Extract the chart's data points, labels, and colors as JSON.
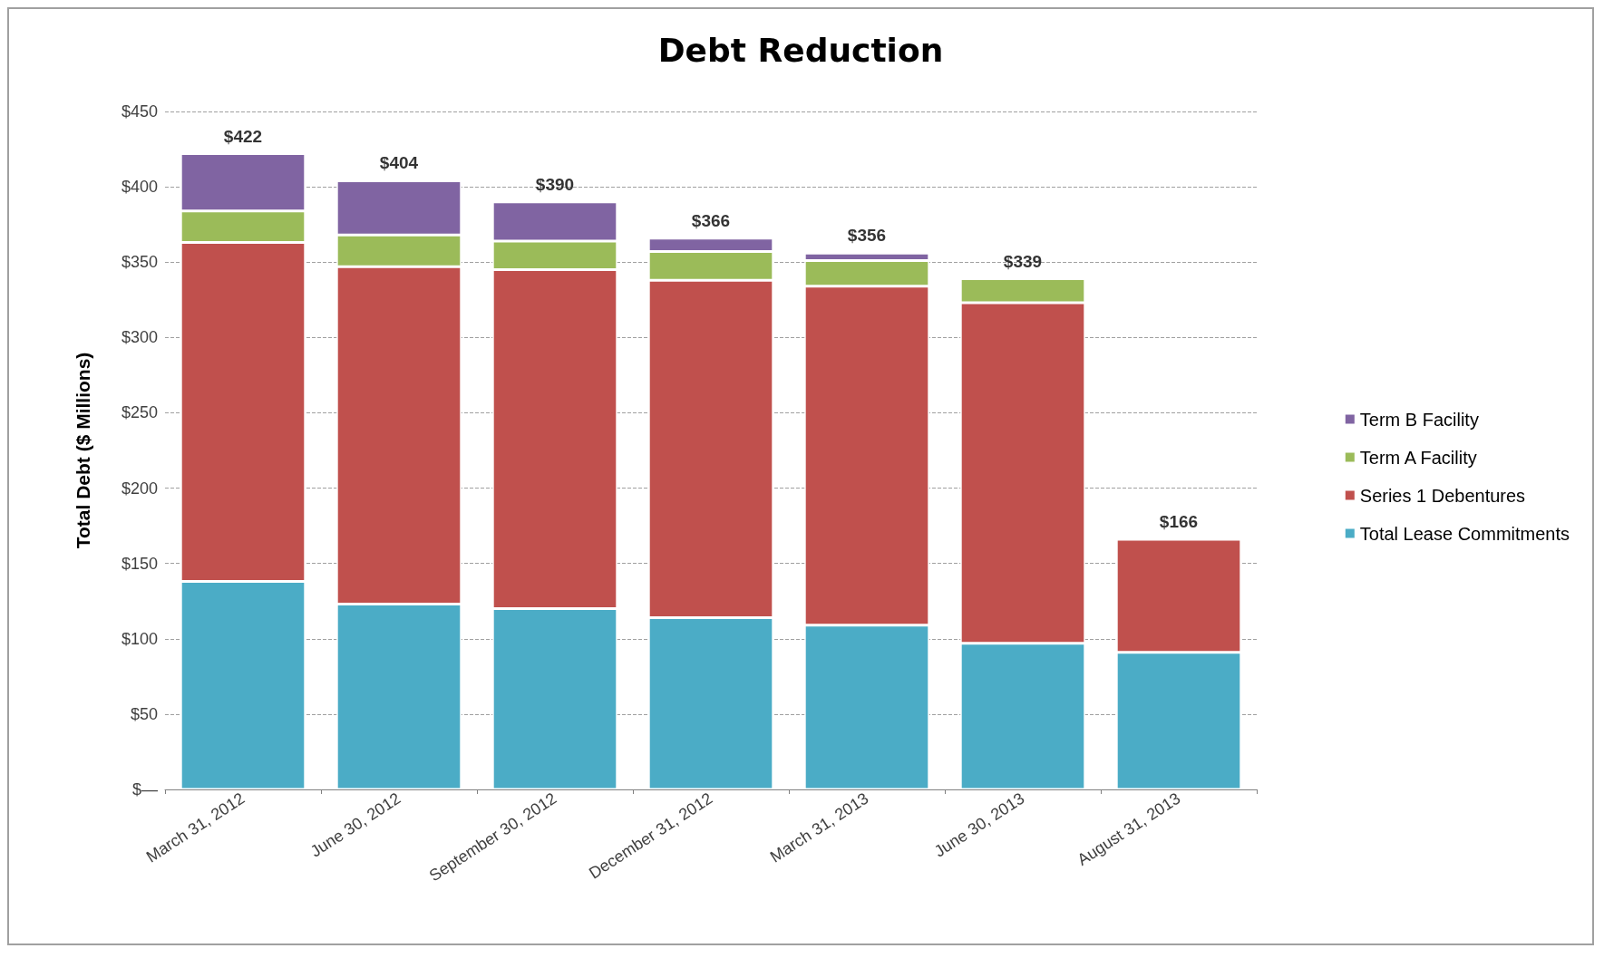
{
  "chart_data": {
    "type": "bar",
    "title": "Debt Reduction",
    "ylabel": "Total Debt ($ Millions)",
    "categories": [
      "March 31, 2012",
      "June 30, 2012",
      "September 30, 2012",
      "December 31, 2012",
      "March 31, 2013",
      "June 30, 2013",
      "August 31, 2013"
    ],
    "stacked": true,
    "series": [
      {
        "name": "Total Lease Commitments",
        "color": "#4bacc6",
        "values": [
          138,
          123,
          120,
          114,
          109,
          97,
          91
        ]
      },
      {
        "name": "Series 1 Debentures",
        "color": "#c0504d",
        "values": [
          225,
          224,
          225,
          224,
          225,
          226,
          75
        ]
      },
      {
        "name": "Term A Facility",
        "color": "#9bbb59",
        "values": [
          21,
          21,
          19,
          19,
          17,
          16,
          null
        ]
      },
      {
        "name": "Term B Facility",
        "color": "#8064a2",
        "values": [
          38,
          36,
          26,
          9,
          5,
          null,
          null
        ]
      }
    ],
    "totals": [
      "$422",
      "$404",
      "$390",
      "$366",
      "$356",
      "$339",
      "$166"
    ],
    "ylim": [
      0,
      450
    ],
    "yticks": [
      {
        "value": 0,
        "label": "$—"
      },
      {
        "value": 50,
        "label": "$50"
      },
      {
        "value": 100,
        "label": "$100"
      },
      {
        "value": 150,
        "label": "$150"
      },
      {
        "value": 200,
        "label": "$200"
      },
      {
        "value": 250,
        "label": "$250"
      },
      {
        "value": 300,
        "label": "$300"
      },
      {
        "value": 350,
        "label": "$350"
      },
      {
        "value": 400,
        "label": "$400"
      },
      {
        "value": 450,
        "label": "$450"
      }
    ],
    "grid": "y",
    "legend": "right"
  }
}
